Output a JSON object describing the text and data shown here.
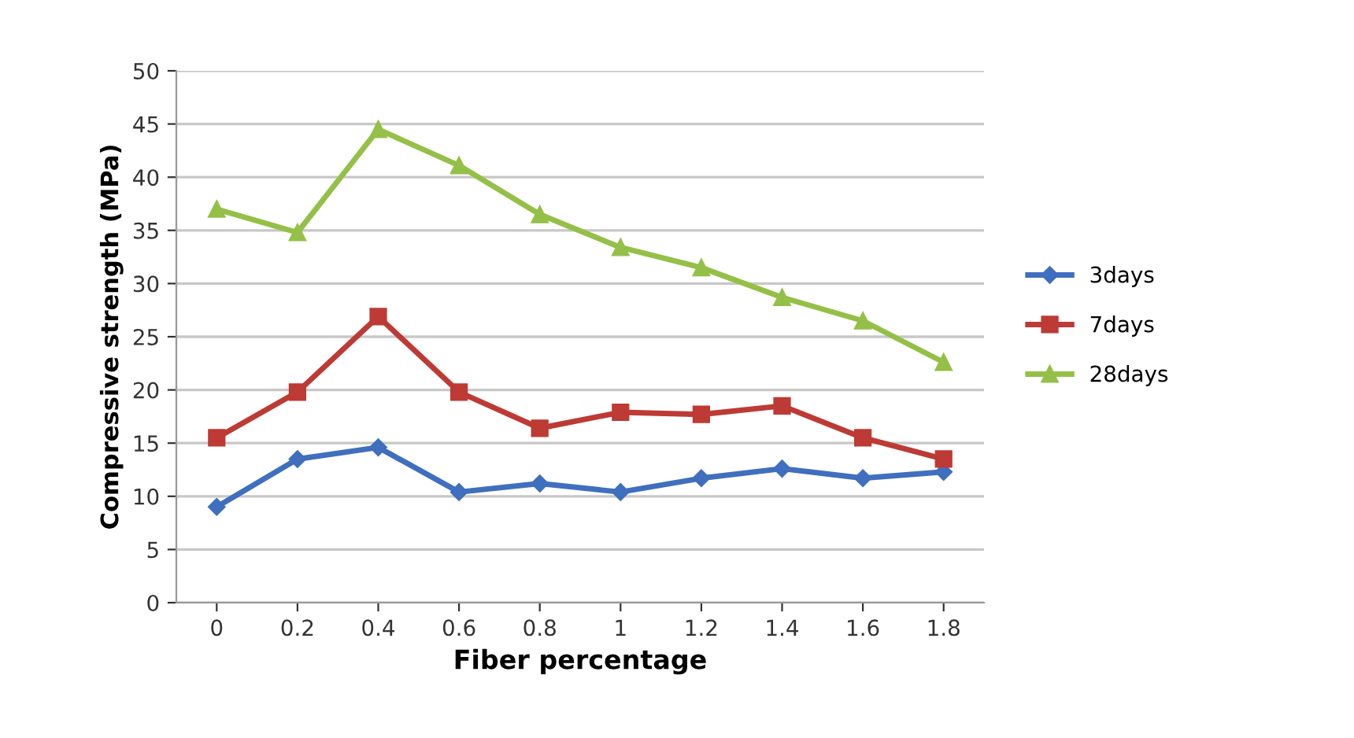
{
  "chart_data": {
    "type": "line",
    "xlabel": "Fiber percentage",
    "ylabel": "Compressive strength (MPa)",
    "categories": [
      "0",
      "0.2",
      "0.4",
      "0.6",
      "0.8",
      "1",
      "1.2",
      "1.4",
      "1.6",
      "1.8"
    ],
    "series": [
      {
        "name": "3days",
        "color": "#3f6fbe",
        "marker": "diamond",
        "values": [
          9,
          13.5,
          14.6,
          10.4,
          11.2,
          10.4,
          11.7,
          12.6,
          11.7,
          12.3
        ]
      },
      {
        "name": "7days",
        "color": "#be3a34",
        "marker": "square",
        "values": [
          15.5,
          19.8,
          26.9,
          19.8,
          16.4,
          17.9,
          17.7,
          18.5,
          15.5,
          13.5
        ]
      },
      {
        "name": "28days",
        "color": "#94c047",
        "marker": "triangle",
        "values": [
          37,
          34.8,
          44.5,
          41.1,
          36.5,
          33.4,
          31.5,
          28.7,
          26.5,
          22.6
        ]
      }
    ],
    "ylim": [
      0,
      50
    ],
    "yticks": [
      0,
      5,
      10,
      15,
      20,
      25,
      30,
      35,
      40,
      45,
      50
    ],
    "grid": "y",
    "legend": "right"
  }
}
